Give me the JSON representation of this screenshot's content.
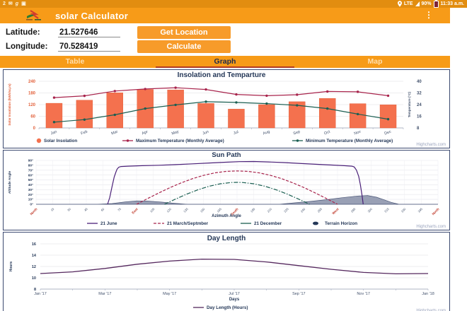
{
  "status_bar": {
    "time": "11:33 a.m.",
    "battery_percent": "90%",
    "network": "LTE",
    "left_icons": [
      {
        "name": "sim-icon",
        "glyph": "2"
      },
      {
        "name": "mail-icon",
        "glyph": "✉"
      },
      {
        "name": "google-icon",
        "glyph": "g"
      },
      {
        "name": "gallery-icon",
        "glyph": "▣"
      }
    ]
  },
  "app_bar": {
    "title": "solar Calculator"
  },
  "form": {
    "latitude_label": "Latitude:",
    "latitude_value": "21.527646",
    "longitude_label": "Longitude:",
    "longitude_value": "70.528419",
    "get_location_label": "Get Location",
    "calculate_label": "Calculate"
  },
  "tabs": {
    "items": [
      "Table",
      "Graph",
      "Map"
    ],
    "selected": "Graph"
  },
  "credits": "Highcharts.com",
  "chart_data": [
    {
      "type": "bar",
      "title": "Insolation and Temparture",
      "categories": [
        "Jan",
        "Feb",
        "Mar",
        "Apr",
        "May",
        "Jun",
        "Jul",
        "Aug",
        "Sep",
        "Oct",
        "Nov",
        "Dec"
      ],
      "yleft": {
        "title": "Solar Insolation (kWh/sq.m)",
        "ticks": [
          0,
          60,
          120,
          180,
          240
        ],
        "range": [
          0,
          240
        ],
        "color": "#e2603a"
      },
      "yright": {
        "title": "Temperature (°C)",
        "ticks": [
          8,
          16,
          24,
          32,
          40
        ],
        "range": [
          8,
          40
        ],
        "color": "#41506b"
      },
      "series": [
        {
          "name": "Solar Insolation",
          "type": "bar",
          "axis": "left",
          "color": "#f4714e",
          "values": [
            127,
            143,
            181,
            198,
            196,
            126,
            97,
            120,
            135,
            152,
            125,
            119
          ]
        },
        {
          "name": "Maximum Temperature (Monthly Average)",
          "type": "line",
          "axis": "right",
          "color": "#a8244c",
          "values": [
            28.8,
            30,
            33.3,
            34.7,
            35.6,
            34.4,
            31,
            30.1,
            30.8,
            33,
            32.8,
            30.1
          ]
        },
        {
          "name": "Minimum Temperature (Monthly Average)",
          "type": "line",
          "axis": "right",
          "color": "#1b5f52",
          "values": [
            12,
            13.7,
            17,
            21.3,
            23.8,
            26,
            25.5,
            24.7,
            23.5,
            21.3,
            17.5,
            14
          ]
        }
      ],
      "legend_position": "bottom",
      "grid": true
    },
    {
      "type": "line",
      "title": "Sun Path",
      "xlabel": "Azimuth Angle",
      "ylabel": "Altitude Angle",
      "xlim": [
        0,
        360
      ],
      "ylim": [
        0,
        90
      ],
      "x_ticks": [
        0,
        15,
        30,
        45,
        60,
        75,
        90,
        105,
        120,
        135,
        150,
        165,
        180,
        195,
        210,
        225,
        240,
        255,
        270,
        285,
        300,
        315,
        330,
        345,
        360
      ],
      "cardinals": {
        "0": "North",
        "90": "East",
        "180": "South",
        "270": "West",
        "360": "North"
      },
      "y_ticks": [
        "0°",
        "10°",
        "20°",
        "30°",
        "40°",
        "50°",
        "60°",
        "70°",
        "80°",
        "90°"
      ],
      "cardinal_color": "#c03a2b",
      "series": [
        {
          "name": "21 June",
          "dash": "solid",
          "color": "#4a2078",
          "points": [
            [
              64,
              0
            ],
            [
              66,
              14
            ],
            [
              68,
              36
            ],
            [
              70,
              56
            ],
            [
              71.5,
              66
            ],
            [
              72.5,
              72
            ],
            [
              74,
              76
            ],
            [
              76,
              77.5
            ],
            [
              82,
              78.3
            ],
            [
              95,
              79.2
            ],
            [
              110,
              80.2
            ],
            [
              125,
              81.5
            ],
            [
              140,
              83
            ],
            [
              155,
              84.8
            ],
            [
              170,
              86.4
            ],
            [
              182,
              87.6
            ],
            [
              195,
              87.8
            ],
            [
              208,
              87
            ],
            [
              222,
              85.6
            ],
            [
              238,
              83.6
            ],
            [
              252,
              82
            ],
            [
              265,
              80.5
            ],
            [
              276,
              79.3
            ],
            [
              283,
              78.2
            ],
            [
              285,
              76.5
            ],
            [
              287,
              70
            ],
            [
              289,
              57
            ],
            [
              290.5,
              40
            ],
            [
              292,
              18
            ],
            [
              293,
              0
            ]
          ]
        },
        {
          "name": "21 March/Septmber",
          "dash": "dash",
          "color": "#a8244c",
          "points": [
            [
              90,
              0
            ],
            [
              100,
              11.9
            ],
            [
              110,
              23.4
            ],
            [
              120,
              34.3
            ],
            [
              130,
              44
            ],
            [
              140,
              52.5
            ],
            [
              150,
              59.3
            ],
            [
              160,
              64.4
            ],
            [
              170,
              67.5
            ],
            [
              180,
              68.5
            ],
            [
              190,
              67.5
            ],
            [
              200,
              64.4
            ],
            [
              210,
              59.3
            ],
            [
              220,
              52.5
            ],
            [
              230,
              44
            ],
            [
              240,
              34.3
            ],
            [
              250,
              23.4
            ],
            [
              260,
              11.9
            ],
            [
              270,
              0
            ]
          ]
        },
        {
          "name": "21 December",
          "dash": "dashdot",
          "color": "#1b5f52",
          "points": [
            [
              115,
              0
            ],
            [
              125,
              10.8
            ],
            [
              135,
              20.9
            ],
            [
              145,
              29.8
            ],
            [
              155,
              37
            ],
            [
              165,
              42.1
            ],
            [
              175,
              44.7
            ],
            [
              180,
              45
            ],
            [
              185,
              44.7
            ],
            [
              195,
              42.1
            ],
            [
              205,
              37
            ],
            [
              215,
              29.8
            ],
            [
              225,
              20.9
            ],
            [
              235,
              10.8
            ],
            [
              245,
              0
            ]
          ]
        },
        {
          "name": "Terrain Horizon",
          "type": "area",
          "color": "#8e96ad",
          "edge": "#4d5878",
          "points": [
            [
              0,
              0
            ],
            [
              55,
              0
            ],
            [
              68,
              1.5
            ],
            [
              80,
              5
            ],
            [
              90,
              7
            ],
            [
              100,
              6.5
            ],
            [
              112,
              4.5
            ],
            [
              124,
              2
            ],
            [
              135,
              0
            ],
            [
              218,
              0
            ],
            [
              232,
              3
            ],
            [
              246,
              6
            ],
            [
              260,
              9.5
            ],
            [
              274,
              13.5
            ],
            [
              288,
              17
            ],
            [
              297,
              18
            ],
            [
              305,
              14.5
            ],
            [
              312,
              9
            ],
            [
              318,
              4
            ],
            [
              325,
              0
            ],
            [
              360,
              0
            ]
          ]
        }
      ],
      "legend_position": "bottom",
      "grid": true
    },
    {
      "type": "line",
      "title": "Day Length",
      "xlabel": "Days",
      "ylabel": "Hours",
      "ylim": [
        8,
        16
      ],
      "y_ticks": [
        8,
        10,
        12,
        14,
        16
      ],
      "x_tick_labels": [
        "Jan '17",
        "Mar '17",
        "May '17",
        "Jul '17",
        "Sep '17",
        "Nov '17",
        "Jan '18"
      ],
      "x_tick_indices": [
        0,
        2,
        4,
        6,
        8,
        10,
        12
      ],
      "series": [
        {
          "name": "Day Length (Hours)",
          "color": "#55285e",
          "values": [
            10.75,
            11.05,
            11.65,
            12.4,
            12.95,
            13.3,
            13.25,
            12.8,
            12.15,
            11.5,
            10.95,
            10.7,
            10.75
          ]
        }
      ],
      "legend_position": "bottom",
      "grid": true
    }
  ]
}
